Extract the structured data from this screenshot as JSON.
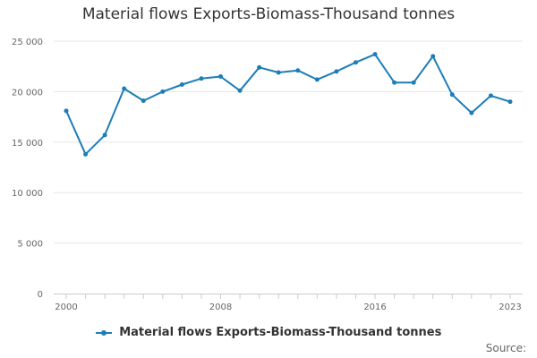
{
  "chart_data": {
    "type": "line",
    "title": "Material flows Exports-Biomass-Thousand tonnes",
    "x": [
      2000,
      2001,
      2002,
      2003,
      2004,
      2005,
      2006,
      2007,
      2008,
      2009,
      2010,
      2011,
      2012,
      2013,
      2014,
      2015,
      2016,
      2017,
      2018,
      2019,
      2020,
      2021,
      2022,
      2023
    ],
    "series": [
      {
        "name": "Material flows Exports-Biomass-Thousand tonnes",
        "color": "#1d7db8",
        "values": [
          18100,
          13800,
          15700,
          20300,
          19100,
          20000,
          20700,
          21300,
          21500,
          20100,
          22400,
          21900,
          22100,
          21200,
          22000,
          22900,
          23700,
          20900,
          20900,
          23500,
          19700,
          17900,
          19600,
          19000
        ]
      }
    ],
    "ylim": [
      0,
      25000
    ],
    "yticks": [
      0,
      5000,
      10000,
      15000,
      20000,
      25000
    ],
    "ytick_labels": [
      "0",
      "5 000",
      "10 000",
      "15 000",
      "20 000",
      "25 000"
    ],
    "xtick_labels": [
      "2000",
      "2008",
      "2016",
      "2023"
    ],
    "grid": true,
    "legend": "bottom"
  },
  "source_label": "Source:"
}
